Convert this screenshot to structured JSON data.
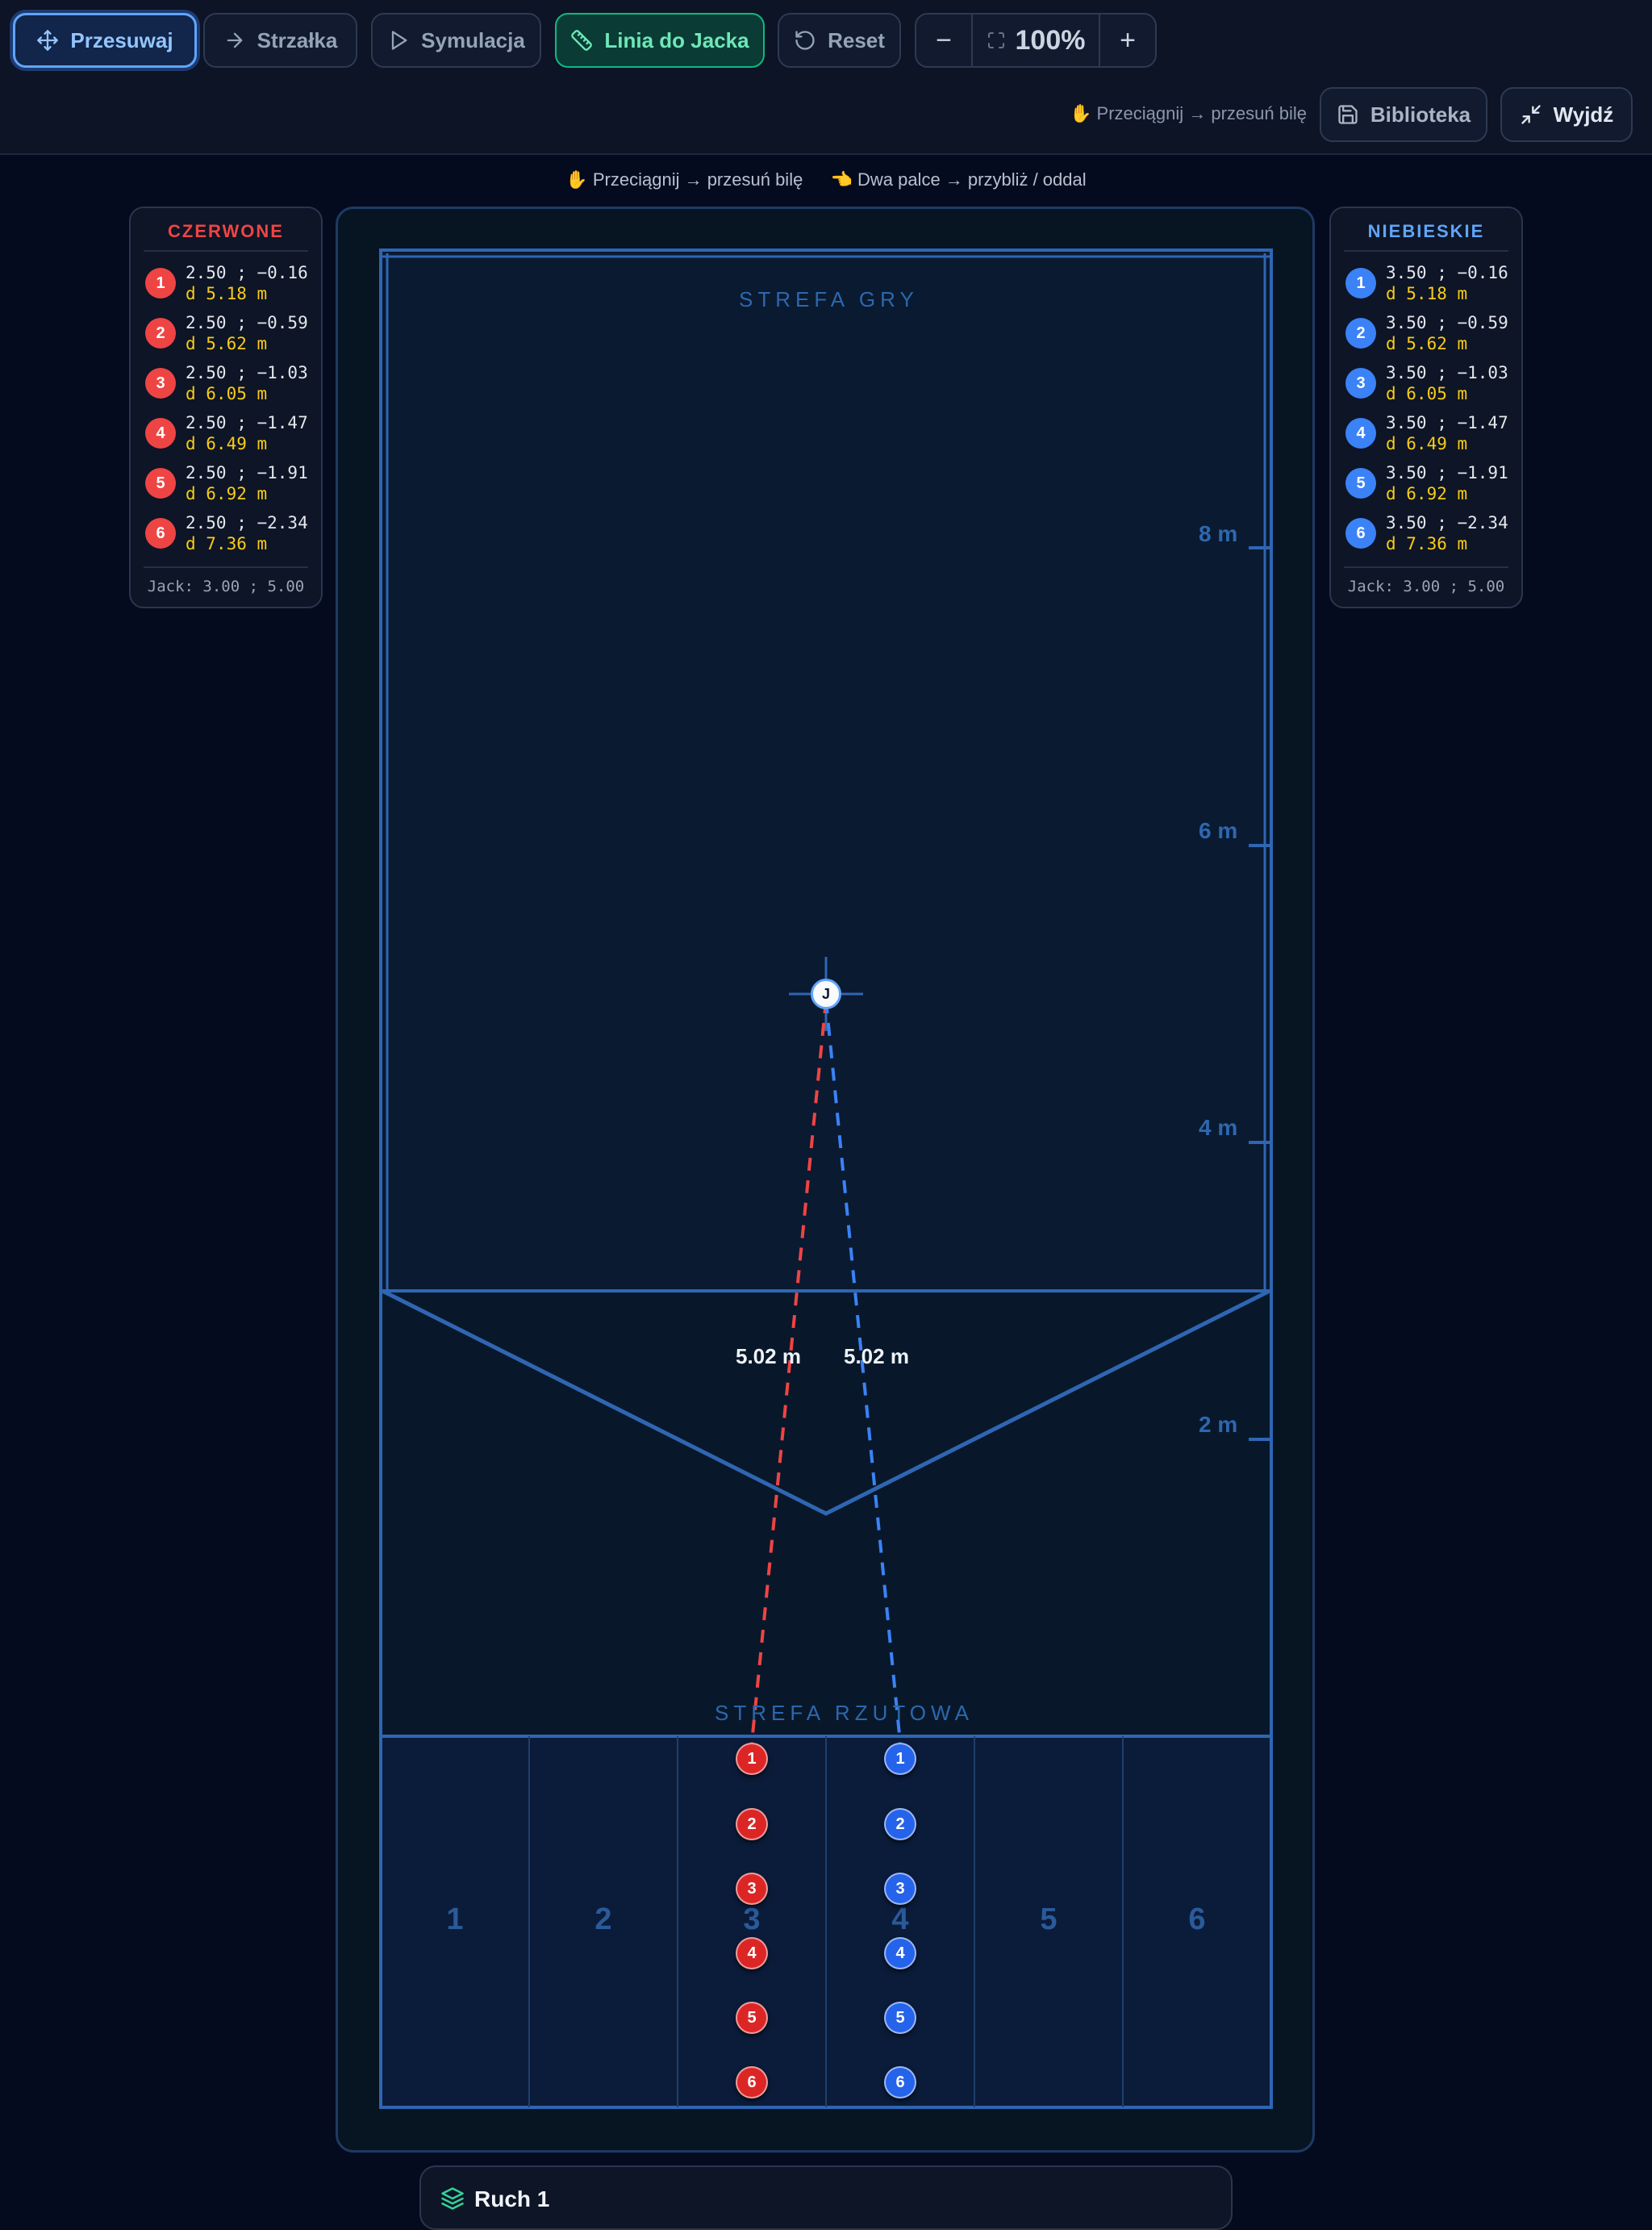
{
  "toolbar": {
    "move_label": "Przesuwaj",
    "arrow_label": "Strzałka",
    "simulation_label": "Symulacja",
    "jack_line_label": "Linia do Jacka",
    "reset_label": "Reset",
    "zoom_out": "−",
    "zoom_level": "100%",
    "zoom_in": "+",
    "hint": "✋ Przeciągnij → przesuń bilę",
    "library_label": "Biblioteka",
    "exit_label": "Wyjdź"
  },
  "hints": {
    "drag": "✋ Przeciągnij → przesuń bilę",
    "pinch": "👈 Dwa palce → przybliż / oddal"
  },
  "red_panel": {
    "title": "CZERWONE",
    "balls": [
      {
        "n": "1",
        "coord": "2.50 ; −0.16",
        "dist": "d 5.18 m"
      },
      {
        "n": "2",
        "coord": "2.50 ; −0.59",
        "dist": "d 5.62 m"
      },
      {
        "n": "3",
        "coord": "2.50 ; −1.03",
        "dist": "d 6.05 m"
      },
      {
        "n": "4",
        "coord": "2.50 ; −1.47",
        "dist": "d 6.49 m"
      },
      {
        "n": "5",
        "coord": "2.50 ; −1.91",
        "dist": "d 6.92 m"
      },
      {
        "n": "6",
        "coord": "2.50 ; −2.34",
        "dist": "d 7.36 m"
      }
    ],
    "jack": "Jack: 3.00 ; 5.00"
  },
  "blue_panel": {
    "title": "NIEBIESKIE",
    "balls": [
      {
        "n": "1",
        "coord": "3.50 ; −0.16",
        "dist": "d 5.18 m"
      },
      {
        "n": "2",
        "coord": "3.50 ; −0.59",
        "dist": "d 5.62 m"
      },
      {
        "n": "3",
        "coord": "3.50 ; −1.03",
        "dist": "d 6.05 m"
      },
      {
        "n": "4",
        "coord": "3.50 ; −1.47",
        "dist": "d 6.49 m"
      },
      {
        "n": "5",
        "coord": "3.50 ; −1.91",
        "dist": "d 6.92 m"
      },
      {
        "n": "6",
        "coord": "3.50 ; −2.34",
        "dist": "d 7.36 m"
      }
    ],
    "jack": "Jack: 3.00 ; 5.00"
  },
  "court": {
    "play_zone_label": "STREFA GRY",
    "throw_zone_label": "STREFA RZUTOWA",
    "distance_marks": [
      "8 m",
      "6 m",
      "4 m",
      "2 m"
    ],
    "lanes": [
      "1",
      "2",
      "3",
      "4",
      "5",
      "6"
    ],
    "jack_label": "J",
    "red_line_distance": "5.02 m",
    "blue_line_distance": "5.02 m",
    "red_balls": [
      "1",
      "2",
      "3",
      "4",
      "5",
      "6"
    ],
    "blue_balls": [
      "1",
      "2",
      "3",
      "4",
      "5",
      "6"
    ],
    "colors": {
      "red": "#ef4444",
      "blue": "#3b82f6",
      "lines": "#2f66b3"
    }
  },
  "move_card": {
    "title": "Ruch 1"
  }
}
